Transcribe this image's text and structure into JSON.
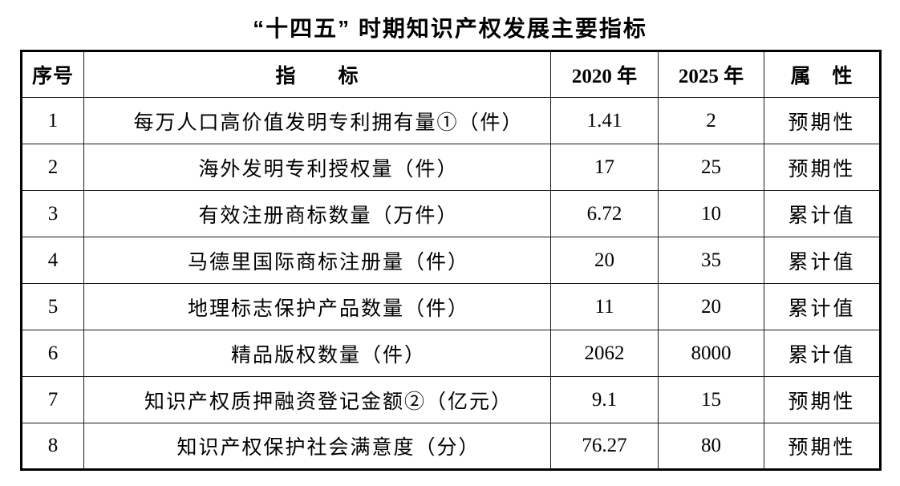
{
  "page": {
    "title": "“十四五” 时期知识产权发展主要指标"
  },
  "table": {
    "columns": {
      "no": "序号",
      "indicator": "指　　标",
      "y2020": "2020 年",
      "y2025": "2025 年",
      "attribute": "属　性"
    },
    "rows": [
      {
        "no": "1",
        "indicator": "每万人口高价值发明专利拥有量①（件）",
        "y2020": "1.41",
        "y2025": "2",
        "attribute": "预期性"
      },
      {
        "no": "2",
        "indicator": "海外发明专利授权量（件）",
        "y2020": "17",
        "y2025": "25",
        "attribute": "预期性"
      },
      {
        "no": "3",
        "indicator": "有效注册商标数量（万件）",
        "y2020": "6.72",
        "y2025": "10",
        "attribute": "累计值"
      },
      {
        "no": "4",
        "indicator": "马德里国际商标注册量（件）",
        "y2020": "20",
        "y2025": "35",
        "attribute": "累计值"
      },
      {
        "no": "5",
        "indicator": "地理标志保护产品数量（件）",
        "y2020": "11",
        "y2025": "20",
        "attribute": "累计值"
      },
      {
        "no": "6",
        "indicator": "精品版权数量（件）",
        "y2020": "2062",
        "y2025": "8000",
        "attribute": "累计值"
      },
      {
        "no": "7",
        "indicator": "知识产权质押融资登记金额②（亿元）",
        "y2020": "9.1",
        "y2025": "15",
        "attribute": "预期性"
      },
      {
        "no": "8",
        "indicator": "知识产权保护社会满意度（分）",
        "y2020": "76.27",
        "y2025": "80",
        "attribute": "预期性"
      }
    ]
  },
  "chart_data": {
    "type": "table",
    "title": "“十四五” 时期知识产权发展主要指标",
    "columns": [
      "序号",
      "指标",
      "2020年",
      "2025年",
      "属性"
    ],
    "rows": [
      [
        "1",
        "每万人口高价值发明专利拥有量①（件）",
        "1.41",
        "2",
        "预期性"
      ],
      [
        "2",
        "海外发明专利授权量（件）",
        "17",
        "25",
        "预期性"
      ],
      [
        "3",
        "有效注册商标数量（万件）",
        "6.72",
        "10",
        "累计值"
      ],
      [
        "4",
        "马德里国际商标注册量（件）",
        "20",
        "35",
        "累计值"
      ],
      [
        "5",
        "地理标志保护产品数量（件）",
        "11",
        "20",
        "累计值"
      ],
      [
        "6",
        "精品版权数量（件）",
        "2062",
        "8000",
        "累计值"
      ],
      [
        "7",
        "知识产权质押融资登记金额②（亿元）",
        "9.1",
        "15",
        "预期性"
      ],
      [
        "8",
        "知识产权保护社会满意度（分）",
        "76.27",
        "80",
        "预期性"
      ]
    ],
    "text_color": "#000000",
    "background_color": "#ffffff",
    "border_color": "#000000"
  }
}
